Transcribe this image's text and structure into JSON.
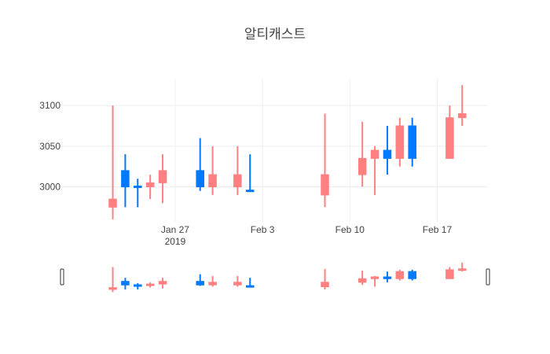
{
  "chart_data": {
    "type": "candlestick",
    "title": "알티캐스트",
    "x_axis": {
      "range": [
        "2019-01-18",
        "2019-02-21"
      ],
      "ticks": [
        {
          "date": "2019-01-27",
          "label": "Jan 27",
          "sublabel": "2019"
        },
        {
          "date": "2019-02-03",
          "label": "Feb 3",
          "sublabel": ""
        },
        {
          "date": "2019-02-10",
          "label": "Feb 10",
          "sublabel": ""
        },
        {
          "date": "2019-02-17",
          "label": "Feb 17",
          "sublabel": ""
        }
      ]
    },
    "y_axis": {
      "range": [
        2957,
        3133
      ],
      "ticks": [
        3000,
        3050,
        3100
      ]
    },
    "grid": true,
    "rangeslider": true,
    "colors": {
      "increasing": "#0079fe",
      "decreasing": "#ff8080",
      "grid": "#eeeeee",
      "text": "#444444"
    },
    "candles": [
      {
        "date": "2019-01-22",
        "open": 2985,
        "high": 3100,
        "low": 2960,
        "close": 2975
      },
      {
        "date": "2019-01-23",
        "open": 3000,
        "high": 3040,
        "low": 2975,
        "close": 3020
      },
      {
        "date": "2019-01-24",
        "open": 3000,
        "high": 3010,
        "low": 2975,
        "close": 3001
      },
      {
        "date": "2019-01-25",
        "open": 3005,
        "high": 3015,
        "low": 2985,
        "close": 3000
      },
      {
        "date": "2019-01-26",
        "open": 3020,
        "high": 3040,
        "low": 2980,
        "close": 3005
      },
      {
        "date": "2019-01-29",
        "open": 3000,
        "high": 3060,
        "low": 2995,
        "close": 3020
      },
      {
        "date": "2019-01-30",
        "open": 3015,
        "high": 3050,
        "low": 2990,
        "close": 3000
      },
      {
        "date": "2019-02-01",
        "open": 3015,
        "high": 3050,
        "low": 2990,
        "close": 3000
      },
      {
        "date": "2019-02-02",
        "open": 2995,
        "high": 3040,
        "low": 2995,
        "close": 2996
      },
      {
        "date": "2019-02-08",
        "open": 3015,
        "high": 3090,
        "low": 2975,
        "close": 2990
      },
      {
        "date": "2019-02-11",
        "open": 3035,
        "high": 3080,
        "low": 3000,
        "close": 3015
      },
      {
        "date": "2019-02-12",
        "open": 3045,
        "high": 3050,
        "low": 2990,
        "close": 3035
      },
      {
        "date": "2019-02-13",
        "open": 3035,
        "high": 3075,
        "low": 3015,
        "close": 3045
      },
      {
        "date": "2019-02-14",
        "open": 3075,
        "high": 3085,
        "low": 3025,
        "close": 3035
      },
      {
        "date": "2019-02-15",
        "open": 3035,
        "high": 3085,
        "low": 3025,
        "close": 3075
      },
      {
        "date": "2019-02-18",
        "open": 3085,
        "high": 3100,
        "low": 3035,
        "close": 3035
      },
      {
        "date": "2019-02-19",
        "open": 3090,
        "high": 3125,
        "low": 3075,
        "close": 3085
      }
    ]
  }
}
